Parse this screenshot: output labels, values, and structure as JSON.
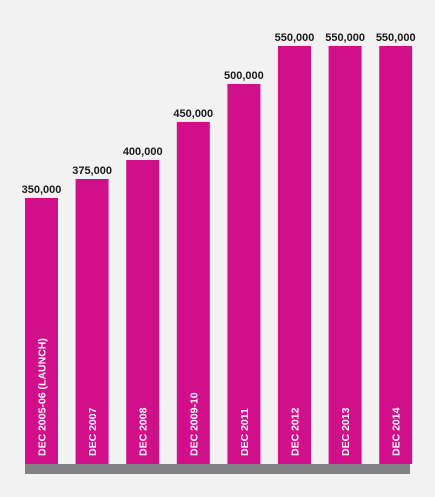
{
  "chart_data": {
    "type": "bar",
    "categories": [
      "DEC 2005-06  (LAUNCH)",
      "DEC 2007",
      "DEC 2008",
      "DEC 2009-10",
      "DEC 2011",
      "DEC 2012",
      "DEC 2013",
      "DEC 2014"
    ],
    "values": [
      350000,
      375000,
      400000,
      450000,
      500000,
      550000,
      550000,
      550000
    ],
    "value_labels": [
      "350,000",
      "375,000",
      "400,000",
      "450,000",
      "500,000",
      "550,000",
      "550,000",
      "550,000"
    ],
    "ylim": [
      0,
      550000
    ],
    "grid": false,
    "legend": "none"
  },
  "colors": {
    "bar": "#d10f8b",
    "baseline": "#7f8384",
    "background": "#f2f2f3",
    "value_text": "#1a1a1a",
    "category_text": "#ffffff"
  }
}
